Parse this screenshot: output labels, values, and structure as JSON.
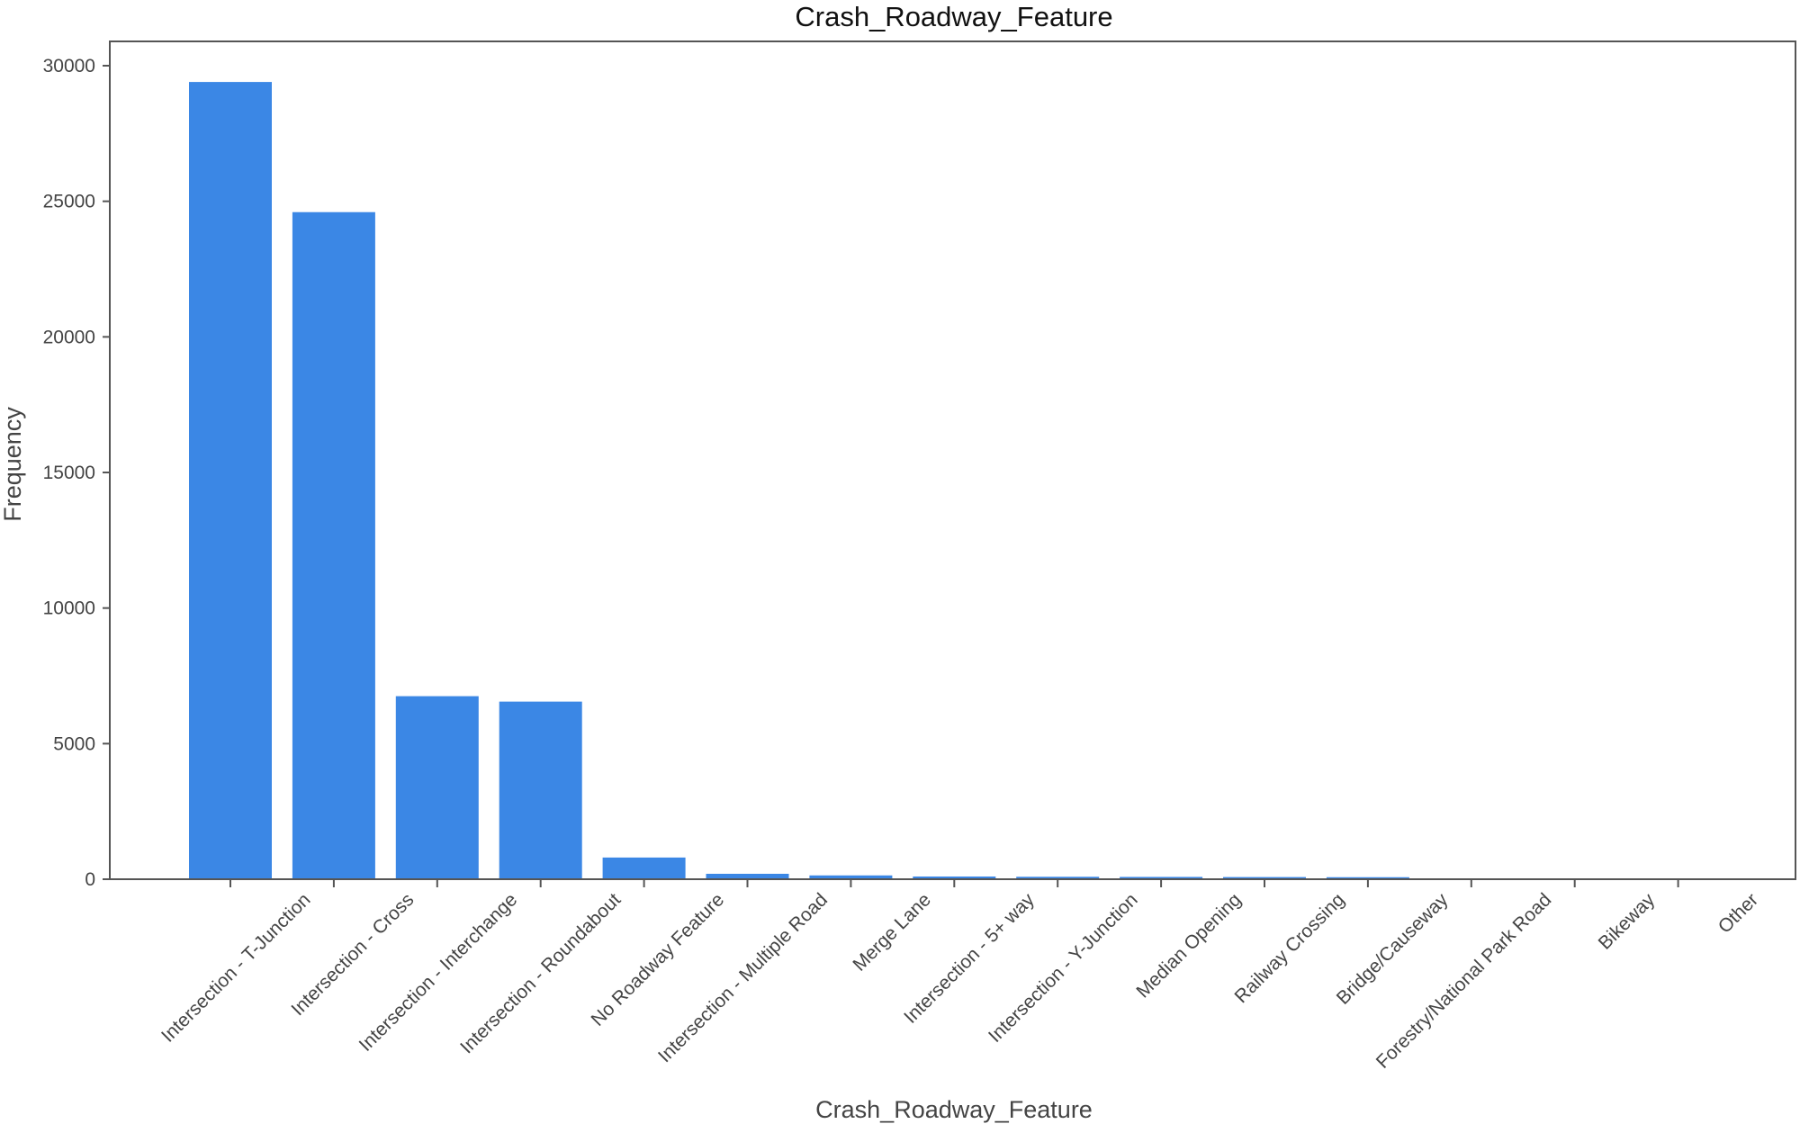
{
  "chart_data": {
    "type": "bar",
    "title": "Crash_Roadway_Feature",
    "xlabel": "Crash_Roadway_Feature",
    "ylabel": "Frequency",
    "categories": [
      "Intersection - T-Junction",
      "Intersection - Cross",
      "Intersection - Interchange",
      "Intersection - Roundabout",
      "No Roadway Feature",
      "Intersection - Multiple Road",
      "Merge Lane",
      "Intersection - 5+ way",
      "Intersection - Y-Junction",
      "Median Opening",
      "Railway Crossing",
      "Bridge/Causeway",
      "Forestry/National Park Road",
      "Bikeway",
      "Other"
    ],
    "values": [
      29400,
      24600,
      6750,
      6550,
      800,
      200,
      140,
      100,
      90,
      85,
      80,
      75,
      10,
      5,
      3
    ],
    "ylim": [
      0,
      31000
    ],
    "yticks": [
      0,
      5000,
      10000,
      15000,
      20000,
      25000,
      30000
    ],
    "bar_color": "#3b87e5",
    "grid": false,
    "legend": "none"
  }
}
